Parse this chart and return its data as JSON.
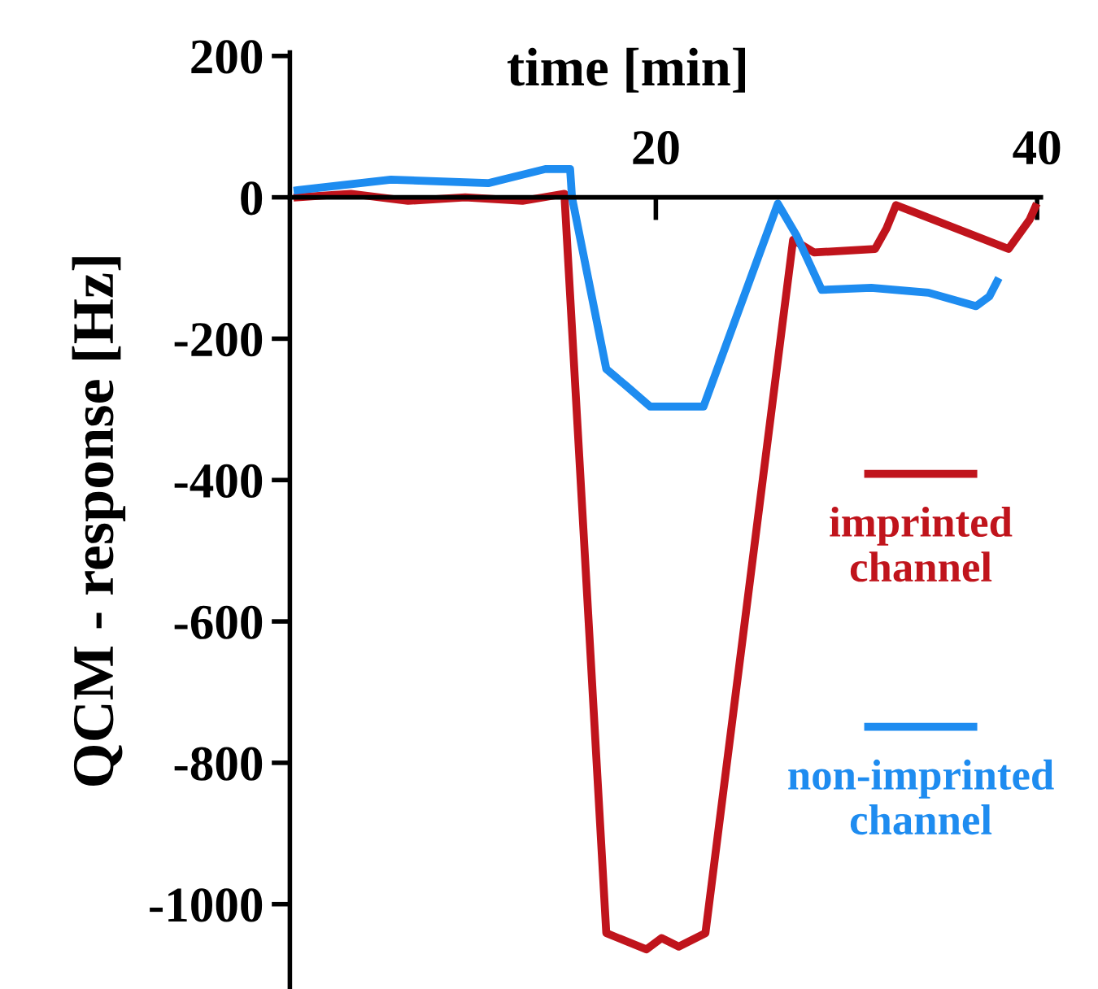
{
  "chart_data": {
    "type": "line",
    "xlabel": "time [min]",
    "ylabel": "QCM - response [Hz]",
    "xlim": [
      0.8,
      40.2
    ],
    "ylim": [
      -1120,
      205
    ],
    "xticks": [
      20,
      40
    ],
    "yticks": [
      200,
      0,
      {
        "value": -200,
        "label": "-200"
      },
      {
        "value": -400,
        "label": "-400"
      },
      {
        "value": -600,
        "label": "-600"
      },
      {
        "value": -800,
        "label": "-800"
      },
      {
        "value": -1000,
        "label": "-1000"
      }
    ],
    "grid": false,
    "legend": "right",
    "marker": "none",
    "line_style": "solid",
    "series": [
      {
        "name": "imprinted channel",
        "color": "#c0141c",
        "x": [
          1.2,
          4,
          7,
          10,
          13,
          15.2,
          17.4,
          19.5,
          20.3,
          21.2,
          22.6,
          27.2,
          28.3,
          31.5,
          32.1,
          32.6,
          38.5,
          39.6,
          39.9
        ],
        "values": [
          0,
          5,
          -5,
          0,
          -5,
          5,
          -1041,
          -1064,
          -1048,
          -1060,
          -1041,
          -60,
          -78,
          -73,
          -44,
          -11,
          -73,
          -32,
          -14
        ]
      },
      {
        "name": "non-imprinted channel",
        "color": "#1e8cf0",
        "x": [
          1.2,
          6.1,
          11.2,
          14.2,
          15.5,
          15.6,
          17.4,
          18.5,
          19.7,
          22.5,
          26.4,
          27.4,
          28.7,
          31.3,
          34.3,
          36.8,
          37.5,
          37.9
        ],
        "values": [
          10,
          25,
          20,
          40,
          40,
          0,
          -243,
          -268,
          -296,
          -296,
          -9,
          -55,
          -131,
          -128,
          -135,
          -154,
          -140,
          -119
        ]
      }
    ]
  }
}
